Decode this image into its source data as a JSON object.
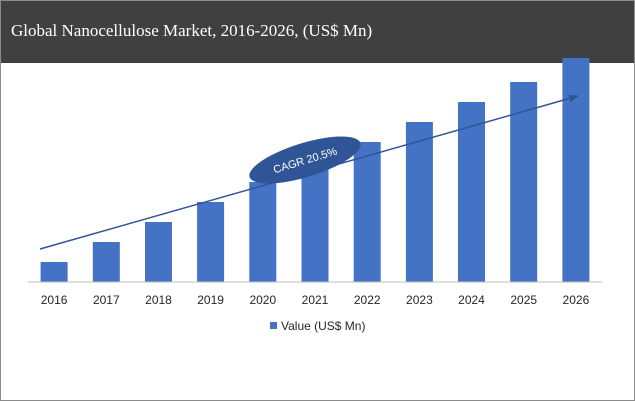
{
  "title": "Global Nanocellulose Market, 2016-2026, (US$ Mn)",
  "annotation": "CAGR 20.5%",
  "colors": {
    "bar": "#4472C4",
    "title_bg": "#404040",
    "ellipse": "#2F5597",
    "arrow": "#2F5597"
  },
  "chart_data": {
    "type": "bar",
    "categories": [
      "2016",
      "2017",
      "2018",
      "2019",
      "2020",
      "2021",
      "2022",
      "2023",
      "2024",
      "2025",
      "2026"
    ],
    "series": [
      {
        "name": "Value (US$ Mn)",
        "values": [
          1.0,
          2.0,
          3.0,
          4.0,
          5.0,
          6.0,
          7.0,
          8.0,
          9.0,
          10.0,
          11.2
        ]
      }
    ],
    "ylim": [
      0,
      12
    ],
    "grid": false,
    "legend": "bottom"
  }
}
